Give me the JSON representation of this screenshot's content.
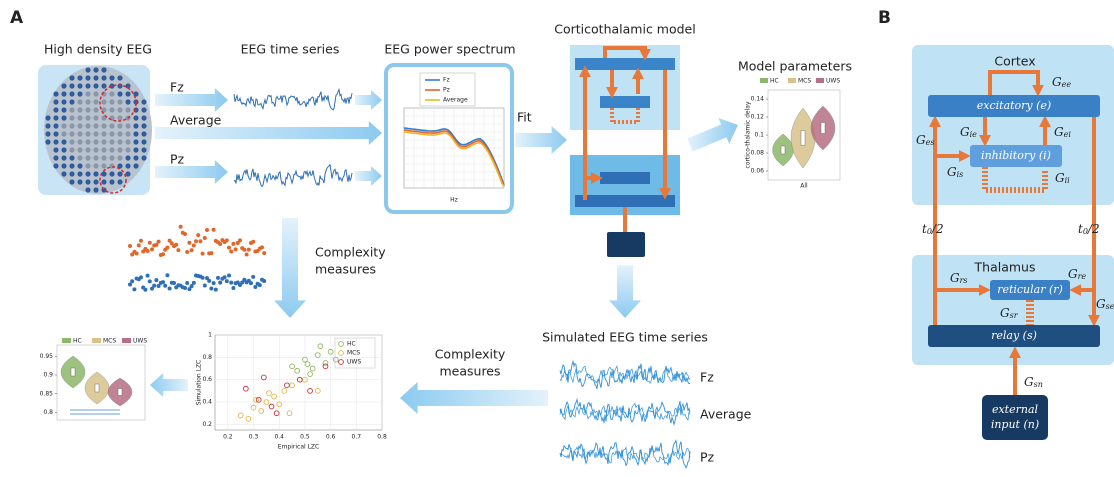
{
  "panel_a": {
    "label": "A",
    "eeg_title": "High density EEG",
    "timeseries_title": "EEG time series",
    "channels": [
      "Fz",
      "Average",
      "Pz"
    ],
    "spectrum": {
      "title": "EEG power spectrum",
      "legend": [
        "Fz",
        "Pz",
        "Average"
      ],
      "xlabel": "Hz"
    },
    "fit": "Fit",
    "model_title": "Corticothalamic model",
    "parameters": {
      "title": "Model parameters",
      "legend": [
        "HC",
        "MCS",
        "UWS"
      ],
      "xlabel": "All",
      "ylabel": "cortico-thalamic delay",
      "ylim": [
        0.05,
        0.15
      ],
      "yticks": [
        0.06,
        0.08,
        0.1,
        0.12,
        0.14
      ]
    },
    "complexity_down": [
      "Complexity",
      "measures"
    ],
    "simulated_title": "Simulated EEG time series",
    "simulated_channels": [
      "Fz",
      "Average",
      "Pz"
    ],
    "complexity_left": [
      "Complexity",
      "measures"
    ],
    "scatter": {
      "xlabel": "Empirical LZC",
      "ylabel": "Simulation LZC",
      "xlim": [
        0.15,
        0.8
      ],
      "ylim": [
        0.15,
        1.0
      ],
      "xticks": [
        0.2,
        0.3,
        0.4,
        0.5,
        0.6,
        0.7,
        0.8
      ],
      "yticks": [
        0.2,
        0.4,
        0.6,
        0.8,
        1
      ],
      "series": [
        {
          "name": "HC",
          "color": "#8db85e",
          "x": [
            0.45,
            0.5,
            0.52,
            0.55,
            0.48,
            0.58,
            0.6,
            0.53,
            0.47,
            0.56,
            0.62,
            0.51
          ],
          "y": [
            0.72,
            0.78,
            0.65,
            0.82,
            0.6,
            0.75,
            0.85,
            0.7,
            0.68,
            0.9,
            0.78,
            0.74
          ]
        },
        {
          "name": "MCS",
          "color": "#e3b64a",
          "x": [
            0.25,
            0.3,
            0.35,
            0.38,
            0.42,
            0.33,
            0.45,
            0.28,
            0.4,
            0.5,
            0.36,
            0.31,
            0.55,
            0.44
          ],
          "y": [
            0.28,
            0.35,
            0.4,
            0.45,
            0.5,
            0.32,
            0.55,
            0.25,
            0.38,
            0.6,
            0.48,
            0.42,
            0.5,
            0.3
          ]
        },
        {
          "name": "UWS",
          "color": "#c8303f",
          "x": [
            0.27,
            0.32,
            0.37,
            0.43,
            0.48,
            0.52,
            0.39,
            0.58,
            0.34
          ],
          "y": [
            0.52,
            0.42,
            0.36,
            0.55,
            0.6,
            0.5,
            0.3,
            0.72,
            0.62
          ]
        }
      ]
    },
    "complexity_violin": {
      "legend": [
        "HC",
        "MCS",
        "UWS"
      ],
      "ylim": [
        0.78,
        0.98
      ],
      "yticks": [
        0.8,
        0.85,
        0.9,
        0.95
      ]
    }
  },
  "panel_b": {
    "label": "B",
    "cortex": "Cortex",
    "thalamus": "Thalamus",
    "excitatory": "excitatory (e)",
    "inhibitory": "inhibitory (i)",
    "reticular": "reticular (r)",
    "relay": "relay (s)",
    "external": [
      "external",
      "input (n)"
    ],
    "gains": [
      {
        "main": "G",
        "sub": "ee"
      },
      {
        "main": "G",
        "sub": "ie"
      },
      {
        "main": "G",
        "sub": "ei"
      },
      {
        "main": "G",
        "sub": "es"
      },
      {
        "main": "G",
        "sub": "is"
      },
      {
        "main": "G",
        "sub": "ii"
      },
      {
        "main": "t",
        "sub": "0",
        "tail": "/2"
      },
      {
        "main": "t",
        "sub": "0",
        "tail": "/2"
      },
      {
        "main": "G",
        "sub": "rs"
      },
      {
        "main": "G",
        "sub": "re"
      },
      {
        "main": "G",
        "sub": "se"
      },
      {
        "main": "G",
        "sub": "sr"
      },
      {
        "main": "G",
        "sub": "sn"
      }
    ]
  }
}
